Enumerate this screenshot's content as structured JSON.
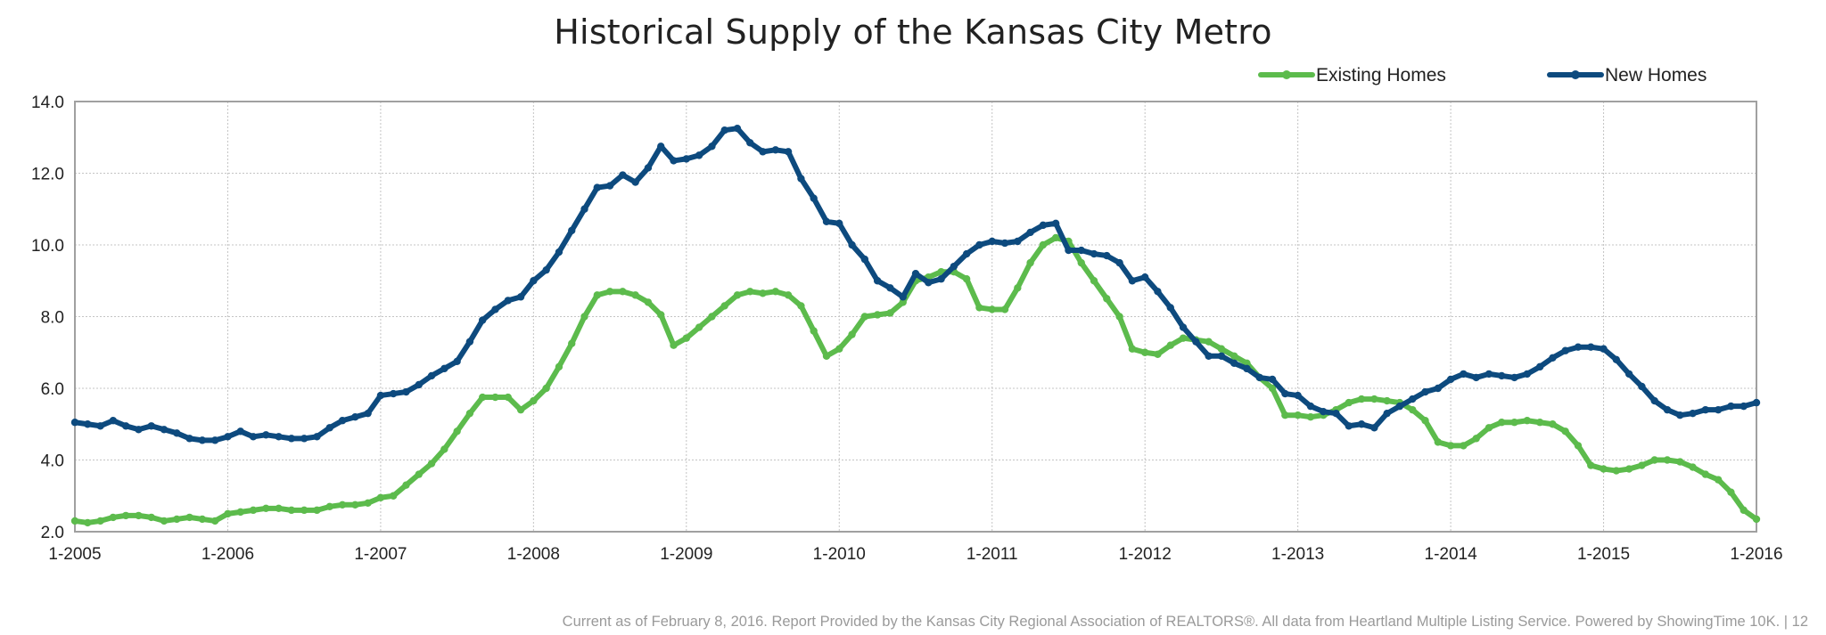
{
  "chart_data": {
    "type": "line",
    "title": "Historical Supply of the Kansas City Metro",
    "xlabel": "",
    "ylabel": "",
    "xlim": [
      0,
      132
    ],
    "ylim": [
      2.0,
      14.0
    ],
    "grid": true,
    "legend_position": "top-right",
    "x_tick_labels": [
      "1-2005",
      "1-2006",
      "1-2007",
      "1-2008",
      "1-2009",
      "1-2010",
      "1-2011",
      "1-2012",
      "1-2013",
      "1-2014",
      "1-2015",
      "1-2016"
    ],
    "y_ticks": [
      2.0,
      4.0,
      6.0,
      8.0,
      10.0,
      12.0,
      14.0
    ],
    "y_tick_labels": [
      "2.0",
      "4.0",
      "6.0",
      "8.0",
      "10.0",
      "12.0",
      "14.0"
    ],
    "series": [
      {
        "name": "Existing Homes",
        "color": "#5cbb4c",
        "values": [
          2.3,
          2.25,
          2.3,
          2.4,
          2.45,
          2.45,
          2.4,
          2.3,
          2.35,
          2.4,
          2.35,
          2.3,
          2.5,
          2.55,
          2.6,
          2.65,
          2.65,
          2.6,
          2.6,
          2.6,
          2.7,
          2.75,
          2.75,
          2.8,
          2.95,
          3.0,
          3.3,
          3.6,
          3.9,
          4.3,
          4.8,
          5.3,
          5.75,
          5.75,
          5.75,
          5.4,
          5.65,
          6.0,
          6.6,
          7.25,
          8.0,
          8.6,
          8.7,
          8.7,
          8.6,
          8.4,
          8.05,
          7.2,
          7.4,
          7.7,
          8.0,
          8.3,
          8.6,
          8.7,
          8.65,
          8.7,
          8.6,
          8.3,
          7.6,
          6.9,
          7.1,
          7.5,
          8.0,
          8.05,
          8.1,
          8.4,
          9.0,
          9.1,
          9.25,
          9.25,
          9.05,
          8.25,
          8.2,
          8.2,
          8.8,
          9.5,
          10.0,
          10.2,
          10.1,
          9.5,
          9.0,
          8.5,
          8.0,
          7.1,
          7.0,
          6.95,
          7.2,
          7.4,
          7.35,
          7.3,
          7.1,
          6.9,
          6.7,
          6.3,
          6.0,
          5.25,
          5.25,
          5.2,
          5.25,
          5.4,
          5.6,
          5.7,
          5.7,
          5.65,
          5.6,
          5.4,
          5.1,
          4.5,
          4.4,
          4.4,
          4.6,
          4.9,
          5.05,
          5.05,
          5.1,
          5.05,
          5.0,
          4.8,
          4.4,
          3.85,
          3.75,
          3.7,
          3.75,
          3.85,
          4.0,
          4.0,
          3.95,
          3.8,
          3.6,
          3.45,
          3.1,
          2.6,
          2.35
        ]
      },
      {
        "name": "New Homes",
        "color": "#0d4a7e",
        "values": [
          5.05,
          5.0,
          4.95,
          5.1,
          4.95,
          4.85,
          4.95,
          4.85,
          4.75,
          4.6,
          4.55,
          4.55,
          4.65,
          4.8,
          4.65,
          4.7,
          4.65,
          4.6,
          4.6,
          4.65,
          4.9,
          5.1,
          5.2,
          5.3,
          5.8,
          5.85,
          5.9,
          6.1,
          6.35,
          6.55,
          6.75,
          7.3,
          7.9,
          8.2,
          8.45,
          8.55,
          9.0,
          9.3,
          9.8,
          10.4,
          11.0,
          11.6,
          11.65,
          11.95,
          11.75,
          12.15,
          12.75,
          12.35,
          12.4,
          12.5,
          12.75,
          13.2,
          13.25,
          12.85,
          12.6,
          12.65,
          12.6,
          11.85,
          11.3,
          10.65,
          10.6,
          10.0,
          9.6,
          9.0,
          8.8,
          8.55,
          9.2,
          8.95,
          9.05,
          9.4,
          9.75,
          10.0,
          10.1,
          10.05,
          10.1,
          10.35,
          10.55,
          10.6,
          9.85,
          9.85,
          9.75,
          9.7,
          9.5,
          9.0,
          9.1,
          8.7,
          8.25,
          7.7,
          7.3,
          6.9,
          6.9,
          6.7,
          6.55,
          6.3,
          6.25,
          5.85,
          5.8,
          5.5,
          5.35,
          5.3,
          4.95,
          5.0,
          4.9,
          5.3,
          5.5,
          5.7,
          5.9,
          6.0,
          6.25,
          6.4,
          6.3,
          6.4,
          6.35,
          6.3,
          6.4,
          6.6,
          6.85,
          7.05,
          7.15,
          7.15,
          7.1,
          6.8,
          6.4,
          6.05,
          5.65,
          5.4,
          5.25,
          5.3,
          5.4,
          5.4,
          5.5,
          5.5,
          5.6
        ]
      }
    ]
  },
  "footer": "Current as of February 8, 2016.  Report Provided by the Kansas City Regional Association of REALTORS®. All data from Heartland Multiple Listing Service. Powered by ShowingTime 10K.  |  12"
}
